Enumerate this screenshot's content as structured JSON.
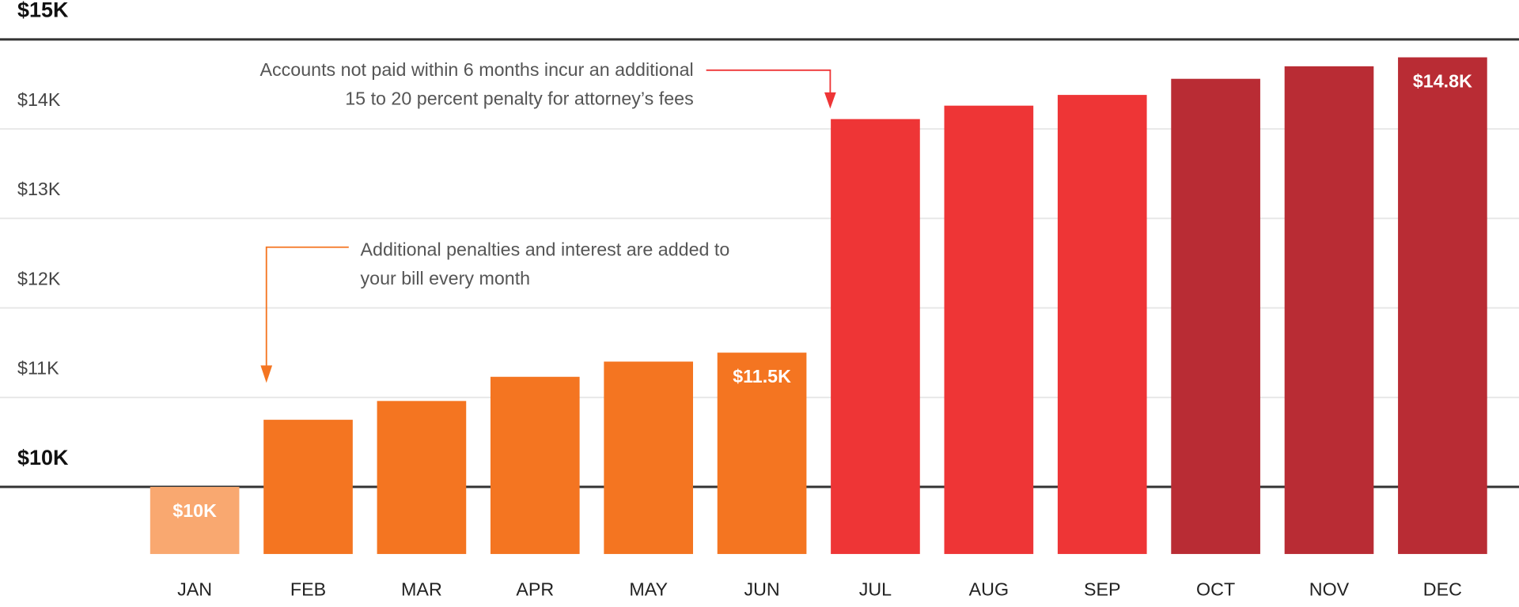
{
  "chart_data": {
    "type": "bar",
    "categories": [
      "JAN",
      "FEB",
      "MAR",
      "APR",
      "MAY",
      "JUN",
      "JUL",
      "AUG",
      "SEP",
      "OCT",
      "NOV",
      "DEC"
    ],
    "values": [
      10,
      10.75,
      10.96,
      11.23,
      11.4,
      11.5,
      14.11,
      14.26,
      14.38,
      14.56,
      14.7,
      14.8
    ],
    "value_labels": [
      "$10K",
      null,
      null,
      null,
      null,
      "$11.5K",
      null,
      null,
      null,
      null,
      null,
      "$14.8K"
    ],
    "colors": [
      "#f9a870",
      "#f47521",
      "#f47521",
      "#f47521",
      "#f47521",
      "#f47521",
      "#ee3536",
      "#ee3536",
      "#ee3536",
      "#b92c34",
      "#b92c34",
      "#b92c34"
    ],
    "ylim": [
      9.25,
      15
    ],
    "yticks": [
      {
        "value": 10,
        "label": "$10K"
      },
      {
        "value": 11,
        "label": "$11K"
      },
      {
        "value": 12,
        "label": "$12K"
      },
      {
        "value": 13,
        "label": "$13K"
      },
      {
        "value": 14,
        "label": "$14K"
      },
      {
        "value": 15,
        "label": "$15K"
      }
    ],
    "grid": true,
    "annotations": [
      {
        "lines": [
          "Accounts not paid within 6 months incur an additional",
          "15 to 20 percent penalty for attorney’s fees"
        ]
      },
      {
        "lines": [
          "Additional penalties and interest are added to",
          "your bill every month"
        ]
      }
    ]
  }
}
